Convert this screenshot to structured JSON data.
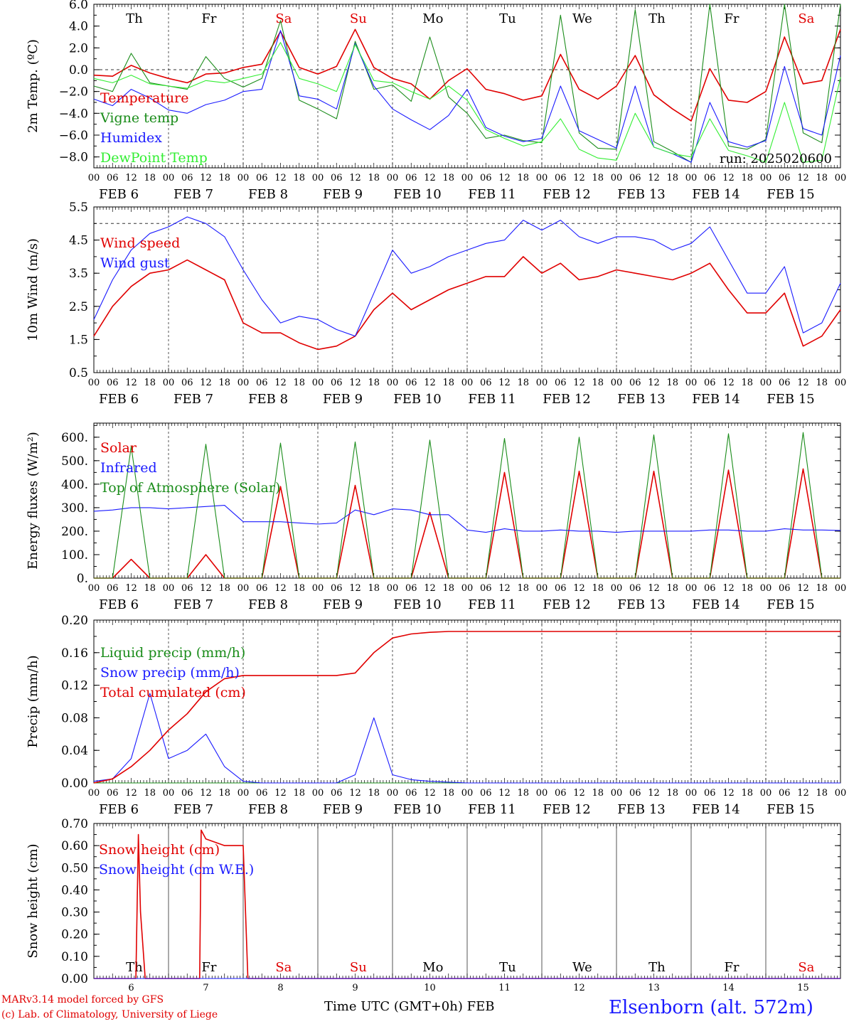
{
  "footer": {
    "credit_line1": "MARv3.14 model forced by GFS",
    "credit_line2": "(c) Lab. of Climatology, University of Liege",
    "x_axis_title": "Time UTC (GMT+0h) FEB",
    "station": "Elsenborn (alt. 572m)"
  },
  "day_labels": [
    "Th",
    "Fr",
    "Sa",
    "Su",
    "Mo",
    "Tu",
    "We",
    "Th",
    "Fr",
    "Sa"
  ],
  "weekend_days": [
    "Sa",
    "Su"
  ],
  "date_labels": [
    "FEB  6",
    "FEB  7",
    "FEB  8",
    "FEB  9",
    "FEB 10",
    "FEB 11",
    "FEB 12",
    "FEB 13",
    "FEB 14",
    "FEB 15"
  ],
  "bottom_day_numbers": [
    "6",
    "7",
    "8",
    "9",
    "10",
    "11",
    "12",
    "13",
    "14",
    "15"
  ],
  "hour_labels": [
    "00",
    "06",
    "12",
    "18"
  ],
  "colors": {
    "red": "#e00000",
    "green": "#1a8c1a",
    "blue": "#1a1aff",
    "lightgreen": "#33ee33",
    "weekend": "#e00000"
  },
  "chart_data": [
    {
      "type": "line",
      "ylabel": "2m Temp. (ºC)",
      "ylim": [
        -9,
        6
      ],
      "yticks": [
        "6.0",
        "4.0",
        "2.0",
        "0.0",
        "−2.0",
        "−4.0",
        "−6.0",
        "−8.0"
      ],
      "ytick_values": [
        6,
        4,
        2,
        0,
        -2,
        -4,
        -6,
        -8
      ],
      "reference_line": 0,
      "annotation": "run: 2025020600",
      "show_day_labels": true,
      "x_hours": [
        0,
        6,
        12,
        18,
        24,
        30,
        36,
        42,
        48,
        54,
        60,
        66,
        72,
        78,
        84,
        90,
        96,
        102,
        108,
        114,
        120,
        126,
        132,
        138,
        144,
        150,
        156,
        162,
        168,
        174,
        180,
        186,
        192,
        198,
        204,
        210,
        216,
        222,
        228,
        234,
        240
      ],
      "series": [
        {
          "name": "Temperature",
          "color": "red",
          "values": [
            -0.5,
            -0.6,
            0.4,
            -0.3,
            -0.8,
            -1.2,
            -0.4,
            -0.3,
            0.2,
            0.5,
            3.5,
            0.2,
            -0.4,
            0.3,
            3.7,
            0.2,
            -0.8,
            -1.3,
            -2.7,
            -1.0,
            0.1,
            -1.8,
            -2.2,
            -2.8,
            -2.4,
            1.4,
            -1.8,
            -2.7,
            -1.5,
            1.3,
            -2.3,
            -3.6,
            -4.7,
            0.1,
            -2.8,
            -3.0,
            -2.0,
            3.0,
            -1.3,
            -1.0,
            3.7
          ]
        },
        {
          "name": "Vigne temp",
          "color": "green",
          "values": [
            -1.5,
            -2.0,
            1.5,
            -1.2,
            -1.5,
            -1.8,
            1.2,
            -0.8,
            -1.6,
            -0.8,
            4.5,
            -2.8,
            -3.6,
            -4.5,
            2.6,
            -1.8,
            -1.4,
            -2.9,
            3.0,
            -2.5,
            -4.0,
            -6.3,
            -6.0,
            -6.5,
            -6.7,
            5.0,
            -5.8,
            -7.2,
            -7.3,
            5.5,
            -6.6,
            -7.5,
            -8.5,
            6.0,
            -7.0,
            -7.3,
            -6.4,
            6.2,
            -5.8,
            -6.7,
            6.0
          ]
        },
        {
          "name": "Humidex",
          "color": "blue",
          "values": [
            -2.7,
            -3.3,
            -1.8,
            -2.6,
            -3.7,
            -4.0,
            -3.2,
            -2.8,
            -2.0,
            -1.8,
            3.6,
            -2.4,
            -2.7,
            -3.6,
            2.4,
            -1.5,
            -3.6,
            -4.6,
            -5.5,
            -4.2,
            -1.8,
            -5.3,
            -6.1,
            -6.6,
            -6.3,
            -1.5,
            -5.6,
            -6.4,
            -7.2,
            -1.5,
            -7.1,
            -7.7,
            -8.5,
            -3.0,
            -6.6,
            -7.1,
            -6.5,
            0.3,
            -5.4,
            -6.0,
            1.3
          ]
        },
        {
          "name": "DewPoint Temp",
          "color": "lightgreen",
          "values": [
            -0.8,
            -1.2,
            -0.5,
            -1.3,
            -1.5,
            -1.7,
            -1.0,
            -1.2,
            -0.8,
            -0.4,
            2.5,
            -0.8,
            -1.3,
            -2.0,
            2.3,
            -1.0,
            -1.2,
            -2.0,
            -2.7,
            -1.5,
            -2.8,
            -5.5,
            -6.3,
            -7.0,
            -6.6,
            -4.5,
            -7.3,
            -8.1,
            -8.3,
            -4.0,
            -7.1,
            -7.7,
            -8.0,
            -4.5,
            -7.4,
            -7.9,
            -8.5,
            -3.0,
            -8.5,
            -8.3,
            -0.7
          ]
        }
      ]
    },
    {
      "type": "line",
      "ylabel": "10m Wind (m/s)",
      "ylim": [
        0.5,
        5.5
      ],
      "yticks": [
        "5.5",
        "4.5",
        "3.5",
        "2.5",
        "1.5",
        "0.5"
      ],
      "ytick_values": [
        5.5,
        4.5,
        3.5,
        2.5,
        1.5,
        0.5
      ],
      "reference_line": 5,
      "x_hours": [
        0,
        6,
        12,
        18,
        24,
        30,
        36,
        42,
        48,
        54,
        60,
        66,
        72,
        78,
        84,
        90,
        96,
        102,
        108,
        114,
        120,
        126,
        132,
        138,
        144,
        150,
        156,
        162,
        168,
        174,
        180,
        186,
        192,
        198,
        204,
        210,
        216,
        222,
        228,
        234,
        240
      ],
      "series": [
        {
          "name": "Wind speed",
          "color": "red",
          "values": [
            1.6,
            2.5,
            3.1,
            3.5,
            3.6,
            3.9,
            3.6,
            3.3,
            2.0,
            1.7,
            1.7,
            1.4,
            1.2,
            1.3,
            1.6,
            2.4,
            2.9,
            2.4,
            2.7,
            3.0,
            3.2,
            3.4,
            3.4,
            4.0,
            3.5,
            3.8,
            3.3,
            3.4,
            3.6,
            3.5,
            3.4,
            3.3,
            3.5,
            3.8,
            3.0,
            2.3,
            2.3,
            2.9,
            1.3,
            1.6,
            2.4
          ]
        },
        {
          "name": "Wind gust",
          "color": "blue",
          "values": [
            2.1,
            3.3,
            4.2,
            4.7,
            4.9,
            5.2,
            5.0,
            4.6,
            3.6,
            2.7,
            2.0,
            2.2,
            2.1,
            1.8,
            1.6,
            2.9,
            4.2,
            3.5,
            3.7,
            4.0,
            4.2,
            4.4,
            4.5,
            5.1,
            4.8,
            5.1,
            4.6,
            4.4,
            4.6,
            4.6,
            4.5,
            4.2,
            4.4,
            4.9,
            3.9,
            2.9,
            2.9,
            3.7,
            1.7,
            2.0,
            3.2
          ]
        }
      ]
    },
    {
      "type": "line",
      "ylabel": "Energy fluxes (W/m²)",
      "ylim": [
        0,
        660
      ],
      "yticks": [
        "600.",
        "500.",
        "400.",
        "300.",
        "200.",
        "100.",
        "0."
      ],
      "ytick_values": [
        600,
        500,
        400,
        300,
        200,
        100,
        0
      ],
      "x_hours": [
        0,
        6,
        12,
        18,
        24,
        30,
        36,
        42,
        48,
        54,
        60,
        66,
        72,
        78,
        84,
        90,
        96,
        102,
        108,
        114,
        120,
        126,
        132,
        138,
        144,
        150,
        156,
        162,
        168,
        174,
        180,
        186,
        192,
        198,
        204,
        210,
        216,
        222,
        228,
        234,
        240
      ],
      "series": [
        {
          "name": "Solar",
          "color": "red",
          "values": [
            0,
            0,
            80,
            0,
            0,
            0,
            100,
            0,
            0,
            0,
            390,
            0,
            0,
            0,
            395,
            0,
            0,
            0,
            280,
            0,
            0,
            0,
            450,
            0,
            0,
            0,
            455,
            0,
            0,
            0,
            455,
            0,
            0,
            0,
            460,
            0,
            0,
            0,
            465,
            0,
            0
          ]
        },
        {
          "name": "Infrared",
          "color": "blue",
          "values": [
            285,
            290,
            300,
            300,
            295,
            300,
            305,
            310,
            240,
            240,
            240,
            235,
            230,
            235,
            290,
            270,
            295,
            290,
            270,
            270,
            205,
            195,
            210,
            200,
            200,
            205,
            200,
            200,
            195,
            200,
            200,
            200,
            200,
            205,
            205,
            200,
            200,
            210,
            205,
            205,
            203
          ]
        },
        {
          "name": "Top of Atmosphere (Solar)",
          "color": "green",
          "values": [
            0,
            0,
            560,
            0,
            0,
            0,
            570,
            0,
            0,
            0,
            575,
            0,
            0,
            0,
            580,
            0,
            0,
            0,
            588,
            0,
            0,
            0,
            595,
            0,
            0,
            0,
            600,
            0,
            0,
            0,
            610,
            0,
            0,
            0,
            615,
            0,
            0,
            0,
            620,
            0,
            0
          ]
        }
      ]
    },
    {
      "type": "line",
      "ylabel": "Precip (mm/h)",
      "ylim": [
        0,
        0.2
      ],
      "yticks": [
        "0.20",
        "0.16",
        "0.12",
        "0.08",
        "0.04",
        "0.00"
      ],
      "ytick_values": [
        0.2,
        0.16,
        0.12,
        0.08,
        0.04,
        0.0
      ],
      "x_hours": [
        0,
        6,
        12,
        18,
        24,
        30,
        36,
        42,
        48,
        54,
        60,
        66,
        72,
        78,
        84,
        90,
        96,
        102,
        108,
        114,
        120,
        126,
        132,
        138,
        144,
        150,
        156,
        162,
        168,
        174,
        180,
        186,
        192,
        198,
        204,
        210,
        216,
        222,
        228,
        234,
        240
      ],
      "series": [
        {
          "name": "Liquid precip (mm/h)",
          "color": "green",
          "values": [
            0,
            0,
            0,
            0,
            0,
            0,
            0,
            0,
            0,
            0,
            0,
            0,
            0,
            0,
            0,
            0,
            0,
            0,
            0,
            0,
            0,
            0,
            0,
            0,
            0,
            0,
            0,
            0,
            0,
            0,
            0,
            0,
            0,
            0,
            0,
            0,
            0,
            0,
            0,
            0,
            0
          ]
        },
        {
          "name": "Snow precip (mm/h)",
          "color": "blue",
          "values": [
            0.002,
            0.005,
            0.03,
            0.11,
            0.03,
            0.04,
            0.06,
            0.02,
            0.002,
            0,
            0,
            0,
            0,
            0,
            0.01,
            0.08,
            0.01,
            0.004,
            0.002,
            0.001,
            0,
            0,
            0,
            0,
            0,
            0,
            0,
            0,
            0,
            0,
            0,
            0,
            0,
            0,
            0,
            0,
            0,
            0,
            0,
            0,
            0
          ]
        },
        {
          "name": "Total cumulated (cm)",
          "color": "red",
          "values": [
            0.0,
            0.005,
            0.02,
            0.04,
            0.065,
            0.085,
            0.112,
            0.128,
            0.132,
            0.132,
            0.132,
            0.132,
            0.132,
            0.132,
            0.135,
            0.16,
            0.178,
            0.183,
            0.185,
            0.186,
            0.186,
            0.186,
            0.186,
            0.186,
            0.186,
            0.186,
            0.186,
            0.186,
            0.186,
            0.186,
            0.186,
            0.186,
            0.186,
            0.186,
            0.186,
            0.186,
            0.186,
            0.186,
            0.186,
            0.186,
            0.186
          ]
        }
      ]
    },
    {
      "type": "line",
      "ylabel": "Snow height (cm)",
      "ylim": [
        0,
        0.7
      ],
      "yticks": [
        "0.70",
        "0.60",
        "0.50",
        "0.40",
        "0.30",
        "0.20",
        "0.10",
        "0.00"
      ],
      "ytick_values": [
        0.7,
        0.6,
        0.5,
        0.4,
        0.3,
        0.2,
        0.1,
        0.0
      ],
      "show_bottom_days": true,
      "series": [
        {
          "name": "Snow height (cm)",
          "color": "red",
          "x": [
            0,
            12,
            13.5,
            14.3,
            15,
            16.5,
            18,
            24,
            30,
            34,
            34.5,
            36,
            42,
            48,
            49.5,
            50,
            60,
            120,
            240
          ],
          "values": [
            0,
            0,
            0,
            0.65,
            0.3,
            0,
            0,
            0,
            0,
            0,
            0.67,
            0.63,
            0.6,
            0.6,
            0,
            0,
            0,
            0,
            0
          ]
        },
        {
          "name": "Snow height (cm W.E.)",
          "color": "blue",
          "x": [
            0,
            240
          ],
          "values": [
            0,
            0
          ]
        }
      ]
    }
  ]
}
